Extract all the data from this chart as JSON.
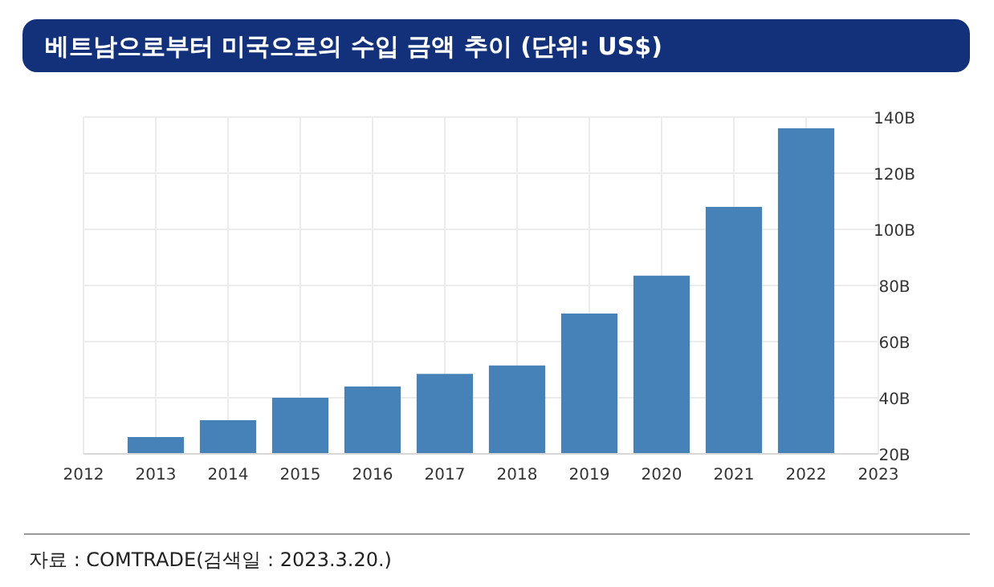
{
  "chart_data": {
    "type": "bar",
    "title": "베트남으로부터 미국으로의 수입 금액 추이 (단위: US$)",
    "x": [
      2013,
      2014,
      2015,
      2016,
      2017,
      2018,
      2019,
      2020,
      2021,
      2022
    ],
    "values": [
      26,
      32,
      40,
      44,
      48.5,
      51.5,
      70,
      83.5,
      108,
      136
    ],
    "color": "#4682b8",
    "xlim": [
      2012,
      2023
    ],
    "xticks": [
      2012,
      2013,
      2014,
      2015,
      2016,
      2017,
      2018,
      2019,
      2020,
      2021,
      2022,
      2023
    ],
    "ylim": [
      20,
      140
    ],
    "yticks": [
      {
        "value": 20,
        "label": "20B"
      },
      {
        "value": 40,
        "label": "40B"
      },
      {
        "value": 60,
        "label": "60B"
      },
      {
        "value": 80,
        "label": "80B"
      },
      {
        "value": 100,
        "label": "100B"
      },
      {
        "value": 120,
        "label": "120B"
      },
      {
        "value": 140,
        "label": "140B"
      }
    ],
    "grid": true,
    "annotations": [
      "자료 : COMTRADE(검색일 : 2023.3.20.)"
    ]
  }
}
